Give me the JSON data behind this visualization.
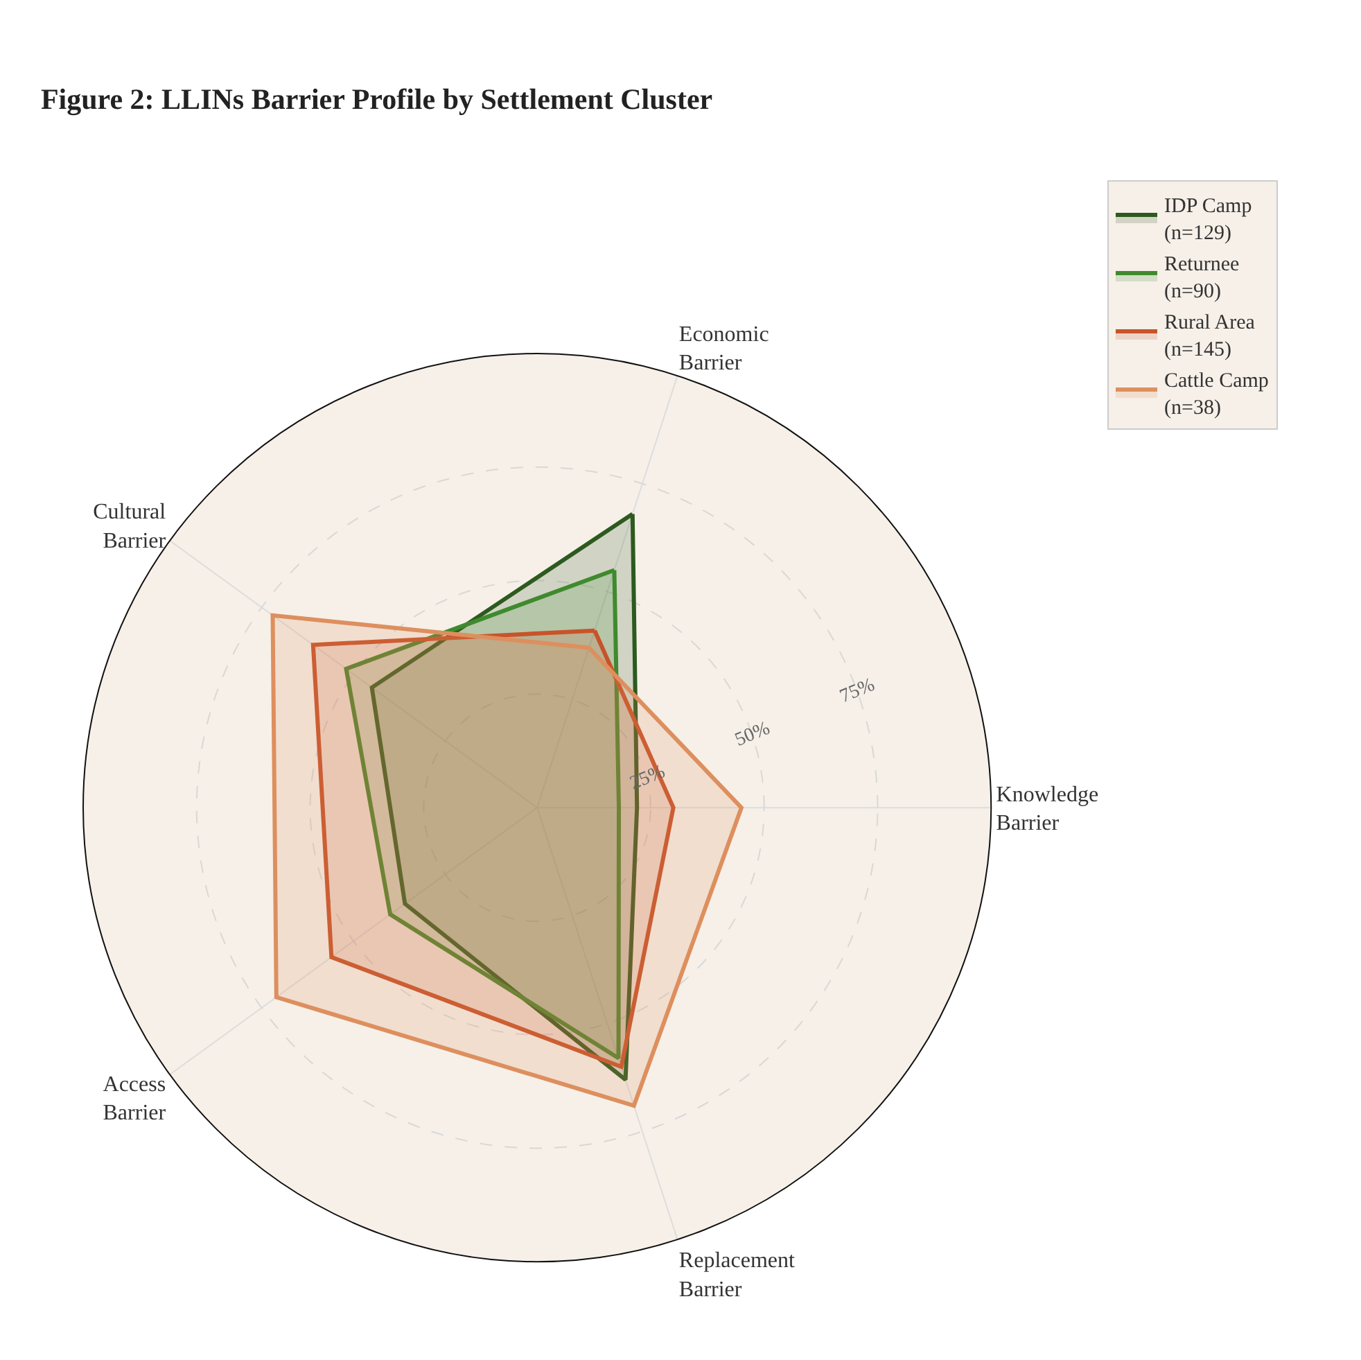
{
  "chart_data": {
    "type": "radar",
    "title": "Figure 2: LLINs Barrier Profile by Settlement Cluster",
    "categories": [
      "Economic\nBarrier",
      "Knowledge\nBarrier",
      "Replacement\nBarrier",
      "Access\nBarrier",
      "Cultural\nBarrier"
    ],
    "series": [
      {
        "name": "IDP Camp\n(n=129)",
        "color": "#2d5a1f",
        "values": [
          68,
          22,
          63,
          36,
          45
        ]
      },
      {
        "name": "Returnee\n(n=90)",
        "color": "#3f8a2e",
        "values": [
          55,
          18,
          58,
          40,
          52
        ]
      },
      {
        "name": "Rural Area\n(n=145)",
        "color": "#c8532a",
        "values": [
          41,
          30,
          60,
          56,
          61
        ]
      },
      {
        "name": "Cattle Camp\n(n=38)",
        "color": "#dd8f5e",
        "values": [
          37,
          45,
          69,
          71,
          72
        ]
      }
    ],
    "ylim": [
      0,
      100
    ],
    "yticks": [
      {
        "value": 25,
        "label": "25%"
      },
      {
        "value": 50,
        "label": "50%"
      },
      {
        "value": 75,
        "label": "75%"
      }
    ],
    "grid": true,
    "legend": "top right",
    "marker": "none",
    "line_style": "solid"
  }
}
